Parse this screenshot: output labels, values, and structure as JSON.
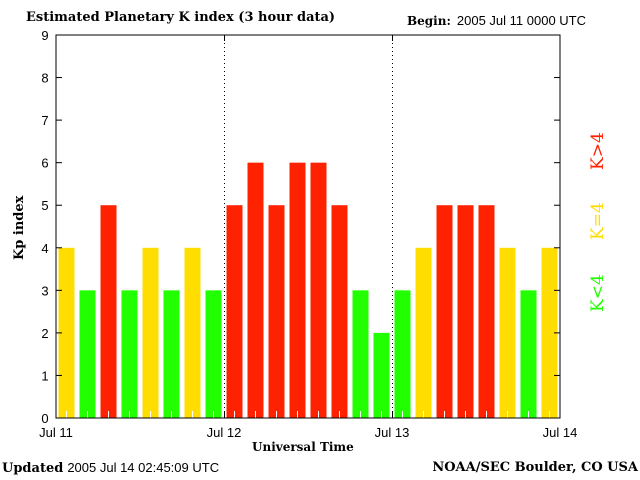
{
  "header": {
    "title": "Estimated Planetary K index (3 hour data)",
    "begin_label": "Begin:",
    "begin_value": "2005 Jul 11 0000 UTC"
  },
  "footer": {
    "updated_label": "Updated",
    "updated_value": "2005 Jul 14 02:45:09 UTC",
    "credit": "NOAA/SEC Boulder, CO USA"
  },
  "legend": {
    "high": "K>4",
    "equal": "K=4",
    "low": "K<4"
  },
  "colors": {
    "high": "#ff2200",
    "equal": "#ffdd00",
    "low": "#22ff00"
  },
  "chart_data": {
    "type": "bar",
    "title": "Estimated Planetary K index (3 hour data)",
    "xlabel": "Universal Time",
    "ylabel": "Kp index",
    "ylim": [
      0,
      9
    ],
    "yticks": [
      "0",
      "1",
      "2",
      "3",
      "4",
      "5",
      "6",
      "7",
      "8",
      "9"
    ],
    "xticks": [
      "Jul 11",
      "Jul 12",
      "Jul 13",
      "Jul 14"
    ],
    "day_separators": [
      "Jul 12",
      "Jul 13"
    ],
    "interval_hours": 3,
    "values": [
      4,
      3,
      5,
      3,
      4,
      3,
      4,
      3,
      5,
      6,
      5,
      6,
      6,
      5,
      3,
      2,
      3,
      4,
      5,
      5,
      5,
      4,
      3,
      4
    ],
    "grid": false
  }
}
